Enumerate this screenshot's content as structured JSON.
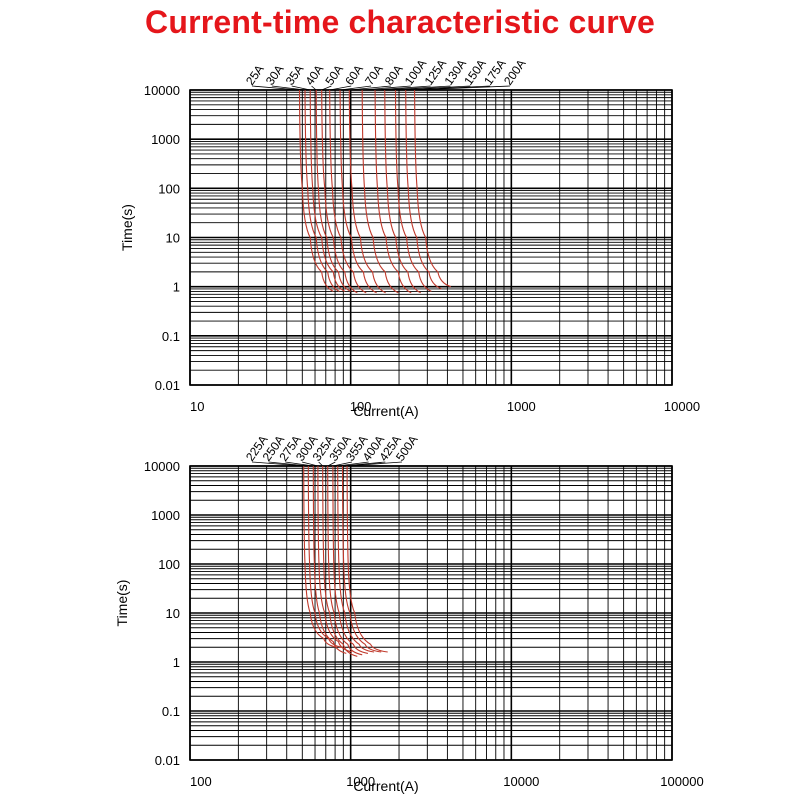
{
  "title": "Current-time characteristic curve",
  "colors": {
    "title": "#e5161b",
    "curve": "#c0392b",
    "grid": "#000000"
  },
  "chart_data": [
    {
      "type": "line",
      "xlabel": "Current(A)",
      "ylabel": "Time(s)",
      "x_scale": "log",
      "y_scale": "log",
      "xlim": [
        10,
        10000
      ],
      "ylim": [
        0.01,
        10000
      ],
      "x_tick_labels": [
        "10",
        "100",
        "1000",
        "10000"
      ],
      "y_tick_labels": [
        "0.01",
        "0.1",
        "1",
        "10",
        "100",
        "1000",
        "10000"
      ],
      "grid": true,
      "series": [
        {
          "name": "25A",
          "x": [
            48,
            50,
            56,
            66,
            78
          ],
          "y": [
            10000,
            100,
            10,
            2,
            0.8
          ]
        },
        {
          "name": "30A",
          "x": [
            52,
            54,
            61,
            72,
            85
          ],
          "y": [
            10000,
            100,
            10,
            2,
            0.8
          ]
        },
        {
          "name": "35A",
          "x": [
            56,
            58,
            66,
            78,
            92
          ],
          "y": [
            10000,
            100,
            10,
            2,
            0.8
          ]
        },
        {
          "name": "40A",
          "x": [
            61,
            63,
            71,
            84,
            100
          ],
          "y": [
            10000,
            100,
            10,
            2,
            0.8
          ]
        },
        {
          "name": "50A",
          "x": [
            66,
            69,
            78,
            92,
            110
          ],
          "y": [
            10000,
            100,
            10,
            2,
            0.75
          ]
        },
        {
          "name": "60A",
          "x": [
            74,
            77,
            87,
            104,
            125
          ],
          "y": [
            10000,
            100,
            10,
            2,
            0.75
          ]
        },
        {
          "name": "70A",
          "x": [
            86,
            89,
            101,
            120,
            145
          ],
          "y": [
            10000,
            100,
            10,
            2,
            0.75
          ]
        },
        {
          "name": "80A",
          "x": [
            98,
            102,
            115,
            137,
            165
          ],
          "y": [
            10000,
            100,
            10,
            2,
            0.75
          ]
        },
        {
          "name": "100A",
          "x": [
            118,
            122,
            138,
            164,
            198
          ],
          "y": [
            10000,
            100,
            10,
            2,
            0.75
          ]
        },
        {
          "name": "125A",
          "x": [
            142,
            147,
            166,
            198,
            238
          ],
          "y": [
            10000,
            100,
            10,
            2,
            0.75
          ]
        },
        {
          "name": "130A",
          "x": [
            163,
            169,
            191,
            227,
            273
          ],
          "y": [
            10000,
            100,
            10,
            2,
            0.75
          ]
        },
        {
          "name": "150A",
          "x": [
            190,
            197,
            223,
            265,
            318
          ],
          "y": [
            10000,
            100,
            10,
            2,
            0.8
          ]
        },
        {
          "name": "175A",
          "x": [
            220,
            228,
            258,
            307,
            368
          ],
          "y": [
            10000,
            100,
            10,
            2,
            0.9
          ]
        },
        {
          "name": "200A",
          "x": [
            250,
            259,
            293,
            349,
            420
          ],
          "y": [
            10000,
            100,
            10,
            2,
            1.0
          ]
        }
      ]
    },
    {
      "type": "line",
      "xlabel": "Current(A)",
      "ylabel": "Time(s)",
      "x_scale": "log",
      "y_scale": "log",
      "xlim": [
        100,
        100000
      ],
      "ylim": [
        0.01,
        10000
      ],
      "x_tick_labels": [
        "100",
        "1000",
        "10000",
        "100000"
      ],
      "y_tick_labels": [
        "0.01",
        "0.1",
        "1",
        "10",
        "100",
        "1000",
        "10000"
      ],
      "grid": true,
      "series": [
        {
          "name": "225A",
          "x": [
            510,
            520,
            560,
            680,
            820
          ],
          "y": [
            10000,
            100,
            10,
            3,
            2
          ]
        },
        {
          "name": "250A",
          "x": [
            545,
            555,
            600,
            730,
            880
          ],
          "y": [
            10000,
            100,
            10,
            3,
            2
          ]
        },
        {
          "name": "275A",
          "x": [
            585,
            595,
            640,
            780,
            940
          ],
          "y": [
            10000,
            100,
            10,
            2.6,
            1.5
          ]
        },
        {
          "name": "300A",
          "x": [
            625,
            635,
            690,
            840,
            1020
          ],
          "y": [
            10000,
            100,
            10,
            2.6,
            1.6
          ]
        },
        {
          "name": "325A",
          "x": [
            670,
            680,
            740,
            900,
            1100
          ],
          "y": [
            10000,
            100,
            10,
            2.3,
            1.3
          ]
        },
        {
          "name": "350A",
          "x": [
            720,
            730,
            790,
            960,
            1180
          ],
          "y": [
            10000,
            100,
            10,
            2.3,
            1.4
          ]
        },
        {
          "name": "355A",
          "x": [
            775,
            785,
            850,
            1040,
            1280
          ],
          "y": [
            10000,
            100,
            10,
            2.3,
            1.5
          ]
        },
        {
          "name": "400A",
          "x": [
            830,
            845,
            920,
            1130,
            1400
          ],
          "y": [
            10000,
            100,
            10,
            2.3,
            1.6
          ]
        },
        {
          "name": "425A",
          "x": [
            890,
            905,
            990,
            1230,
            1550
          ],
          "y": [
            10000,
            100,
            10,
            2.3,
            1.6
          ]
        },
        {
          "name": "500A",
          "x": [
            950,
            965,
            1060,
            1330,
            1700
          ],
          "y": [
            10000,
            100,
            10,
            2.3,
            1.6
          ]
        }
      ]
    }
  ]
}
